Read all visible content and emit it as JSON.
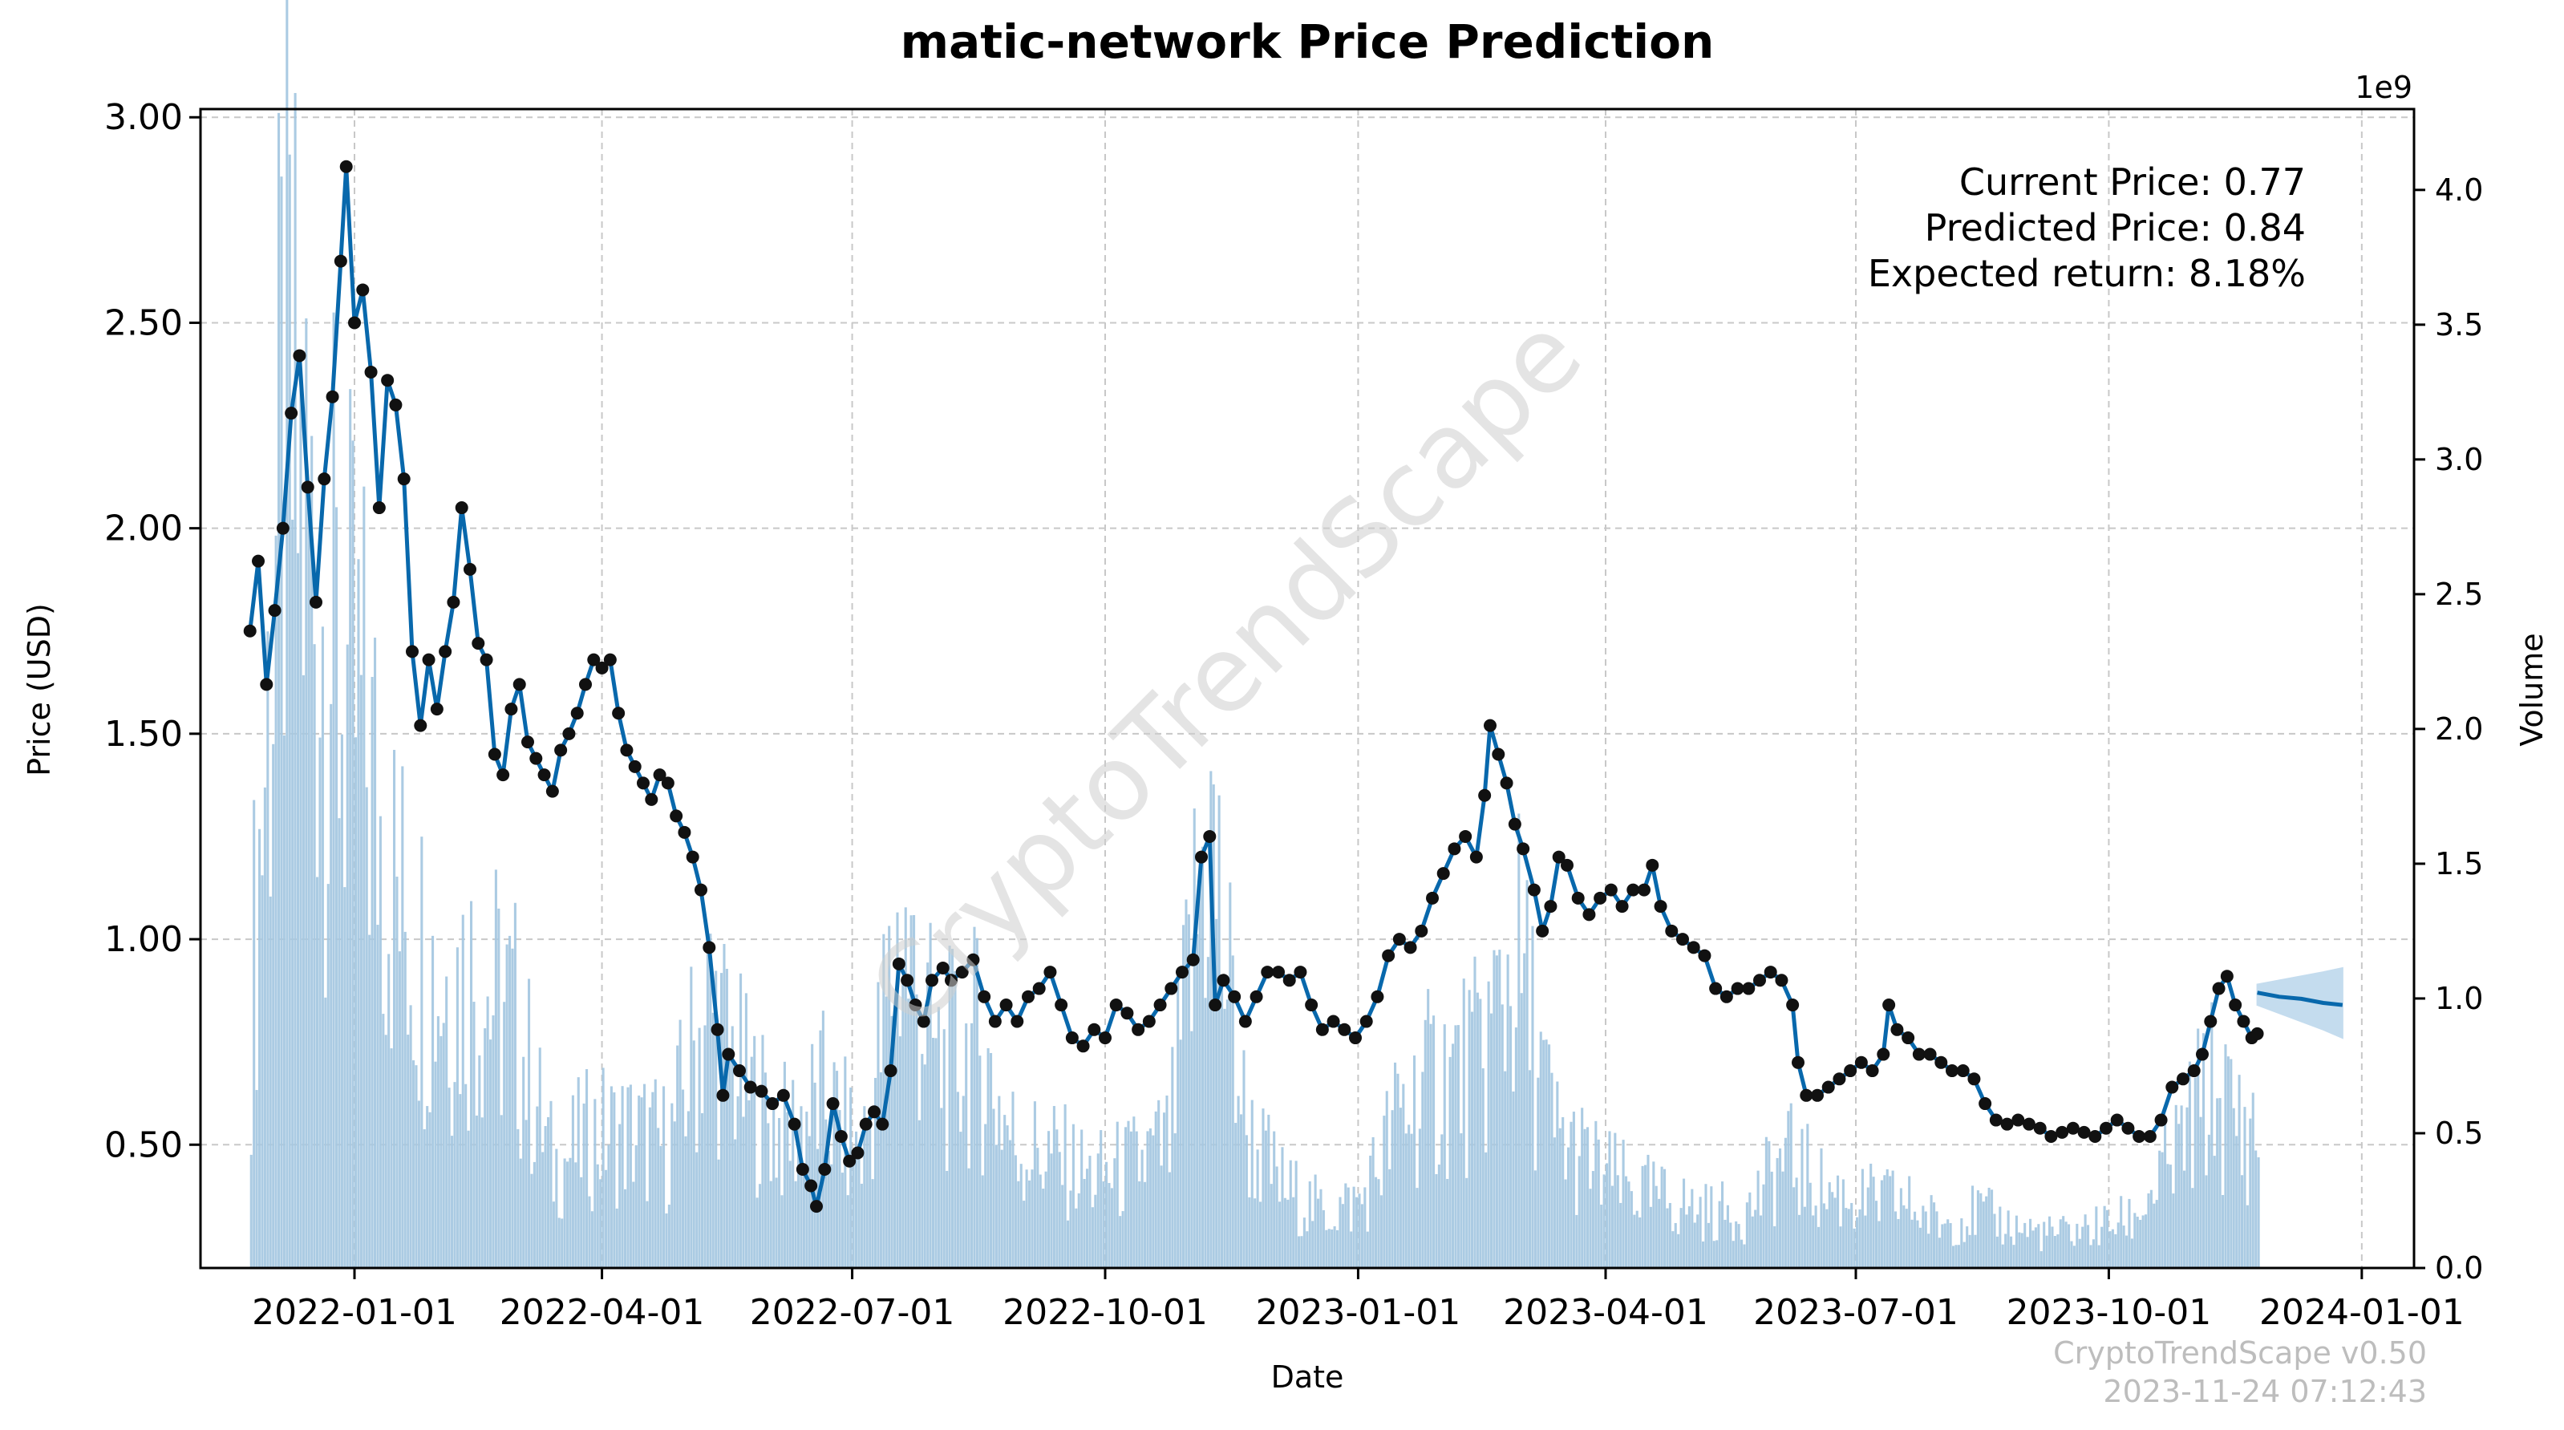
{
  "chart_data": {
    "type": "line",
    "title": "matic-network Price Prediction",
    "xlabel": "Date",
    "ylabel": "Price (USD)",
    "y2label": "Volume",
    "y2_offset_label": "1e9",
    "xlim": [
      "2021-11-06",
      "2024-01-20"
    ],
    "ylim": [
      0.2,
      3.02
    ],
    "y2lim": [
      0,
      4.3
    ],
    "x_ticks": [
      "2022-01-01",
      "2022-04-01",
      "2022-07-01",
      "2022-10-01",
      "2023-01-01",
      "2023-04-01",
      "2023-07-01",
      "2023-10-01",
      "2024-01-01"
    ],
    "y_ticks": [
      "0.50",
      "1.00",
      "1.50",
      "2.00",
      "2.50",
      "3.00"
    ],
    "y2_ticks": [
      "0.0",
      "0.5",
      "1.0",
      "1.5",
      "2.0",
      "2.5",
      "3.0",
      "3.5",
      "4.0"
    ],
    "grid": true,
    "watermark": "CryptoTrendScape",
    "annotations": [
      "Current Price: 0.77",
      "Predicted Price: 0.84",
      "Expected return: 8.18%"
    ],
    "footer": [
      "CryptoTrendScape v0.50",
      "2023-11-24 07:12:43"
    ],
    "colors": {
      "line": "#0868ac",
      "marker": "#111111",
      "volume": "#a6c8e2",
      "band": "#9ec5e4"
    },
    "price_series": {
      "name": "Price",
      "points": [
        [
          "2021-11-24",
          1.75
        ],
        [
          "2021-11-27",
          1.92
        ],
        [
          "2021-11-30",
          1.62
        ],
        [
          "2021-12-03",
          1.8
        ],
        [
          "2021-12-06",
          2.0
        ],
        [
          "2021-12-09",
          2.28
        ],
        [
          "2021-12-12",
          2.42
        ],
        [
          "2021-12-15",
          2.1
        ],
        [
          "2021-12-18",
          1.82
        ],
        [
          "2021-12-21",
          2.12
        ],
        [
          "2021-12-24",
          2.32
        ],
        [
          "2021-12-27",
          2.65
        ],
        [
          "2021-12-29",
          2.88
        ],
        [
          "2022-01-01",
          2.5
        ],
        [
          "2022-01-04",
          2.58
        ],
        [
          "2022-01-07",
          2.38
        ],
        [
          "2022-01-10",
          2.05
        ],
        [
          "2022-01-13",
          2.36
        ],
        [
          "2022-01-16",
          2.3
        ],
        [
          "2022-01-19",
          2.12
        ],
        [
          "2022-01-22",
          1.7
        ],
        [
          "2022-01-25",
          1.52
        ],
        [
          "2022-01-28",
          1.68
        ],
        [
          "2022-01-31",
          1.56
        ],
        [
          "2022-02-03",
          1.7
        ],
        [
          "2022-02-06",
          1.82
        ],
        [
          "2022-02-09",
          2.05
        ],
        [
          "2022-02-12",
          1.9
        ],
        [
          "2022-02-15",
          1.72
        ],
        [
          "2022-02-18",
          1.68
        ],
        [
          "2022-02-21",
          1.45
        ],
        [
          "2022-02-24",
          1.4
        ],
        [
          "2022-02-27",
          1.56
        ],
        [
          "2022-03-02",
          1.62
        ],
        [
          "2022-03-05",
          1.48
        ],
        [
          "2022-03-08",
          1.44
        ],
        [
          "2022-03-11",
          1.4
        ],
        [
          "2022-03-14",
          1.36
        ],
        [
          "2022-03-17",
          1.46
        ],
        [
          "2022-03-20",
          1.5
        ],
        [
          "2022-03-23",
          1.55
        ],
        [
          "2022-03-26",
          1.62
        ],
        [
          "2022-03-29",
          1.68
        ],
        [
          "2022-04-01",
          1.66
        ],
        [
          "2022-04-04",
          1.68
        ],
        [
          "2022-04-07",
          1.55
        ],
        [
          "2022-04-10",
          1.46
        ],
        [
          "2022-04-13",
          1.42
        ],
        [
          "2022-04-16",
          1.38
        ],
        [
          "2022-04-19",
          1.34
        ],
        [
          "2022-04-22",
          1.4
        ],
        [
          "2022-04-25",
          1.38
        ],
        [
          "2022-04-28",
          1.3
        ],
        [
          "2022-05-01",
          1.26
        ],
        [
          "2022-05-04",
          1.2
        ],
        [
          "2022-05-07",
          1.12
        ],
        [
          "2022-05-10",
          0.98
        ],
        [
          "2022-05-13",
          0.78
        ],
        [
          "2022-05-15",
          0.62
        ],
        [
          "2022-05-17",
          0.72
        ],
        [
          "2022-05-21",
          0.68
        ],
        [
          "2022-05-25",
          0.64
        ],
        [
          "2022-05-29",
          0.63
        ],
        [
          "2022-06-02",
          0.6
        ],
        [
          "2022-06-06",
          0.62
        ],
        [
          "2022-06-10",
          0.55
        ],
        [
          "2022-06-13",
          0.44
        ],
        [
          "2022-06-16",
          0.4
        ],
        [
          "2022-06-18",
          0.35
        ],
        [
          "2022-06-21",
          0.44
        ],
        [
          "2022-06-24",
          0.6
        ],
        [
          "2022-06-27",
          0.52
        ],
        [
          "2022-06-30",
          0.46
        ],
        [
          "2022-07-03",
          0.48
        ],
        [
          "2022-07-06",
          0.55
        ],
        [
          "2022-07-09",
          0.58
        ],
        [
          "2022-07-12",
          0.55
        ],
        [
          "2022-07-15",
          0.68
        ],
        [
          "2022-07-18",
          0.94
        ],
        [
          "2022-07-21",
          0.9
        ],
        [
          "2022-07-24",
          0.84
        ],
        [
          "2022-07-27",
          0.8
        ],
        [
          "2022-07-30",
          0.9
        ],
        [
          "2022-08-03",
          0.93
        ],
        [
          "2022-08-06",
          0.9
        ],
        [
          "2022-08-10",
          0.92
        ],
        [
          "2022-08-14",
          0.95
        ],
        [
          "2022-08-18",
          0.86
        ],
        [
          "2022-08-22",
          0.8
        ],
        [
          "2022-08-26",
          0.84
        ],
        [
          "2022-08-30",
          0.8
        ],
        [
          "2022-09-03",
          0.86
        ],
        [
          "2022-09-07",
          0.88
        ],
        [
          "2022-09-11",
          0.92
        ],
        [
          "2022-09-15",
          0.84
        ],
        [
          "2022-09-19",
          0.76
        ],
        [
          "2022-09-23",
          0.74
        ],
        [
          "2022-09-27",
          0.78
        ],
        [
          "2022-10-01",
          0.76
        ],
        [
          "2022-10-05",
          0.84
        ],
        [
          "2022-10-09",
          0.82
        ],
        [
          "2022-10-13",
          0.78
        ],
        [
          "2022-10-17",
          0.8
        ],
        [
          "2022-10-21",
          0.84
        ],
        [
          "2022-10-25",
          0.88
        ],
        [
          "2022-10-29",
          0.92
        ],
        [
          "2022-11-02",
          0.95
        ],
        [
          "2022-11-05",
          1.2
        ],
        [
          "2022-11-08",
          1.25
        ],
        [
          "2022-11-10",
          0.84
        ],
        [
          "2022-11-13",
          0.9
        ],
        [
          "2022-11-17",
          0.86
        ],
        [
          "2022-11-21",
          0.8
        ],
        [
          "2022-11-25",
          0.86
        ],
        [
          "2022-11-29",
          0.92
        ],
        [
          "2022-12-03",
          0.92
        ],
        [
          "2022-12-07",
          0.9
        ],
        [
          "2022-12-11",
          0.92
        ],
        [
          "2022-12-15",
          0.84
        ],
        [
          "2022-12-19",
          0.78
        ],
        [
          "2022-12-23",
          0.8
        ],
        [
          "2022-12-27",
          0.78
        ],
        [
          "2022-12-31",
          0.76
        ],
        [
          "2023-01-04",
          0.8
        ],
        [
          "2023-01-08",
          0.86
        ],
        [
          "2023-01-12",
          0.96
        ],
        [
          "2023-01-16",
          1.0
        ],
        [
          "2023-01-20",
          0.98
        ],
        [
          "2023-01-24",
          1.02
        ],
        [
          "2023-01-28",
          1.1
        ],
        [
          "2023-02-01",
          1.16
        ],
        [
          "2023-02-05",
          1.22
        ],
        [
          "2023-02-09",
          1.25
        ],
        [
          "2023-02-13",
          1.2
        ],
        [
          "2023-02-16",
          1.35
        ],
        [
          "2023-02-18",
          1.52
        ],
        [
          "2023-02-21",
          1.45
        ],
        [
          "2023-02-24",
          1.38
        ],
        [
          "2023-02-27",
          1.28
        ],
        [
          "2023-03-02",
          1.22
        ],
        [
          "2023-03-06",
          1.12
        ],
        [
          "2023-03-09",
          1.02
        ],
        [
          "2023-03-12",
          1.08
        ],
        [
          "2023-03-15",
          1.2
        ],
        [
          "2023-03-18",
          1.18
        ],
        [
          "2023-03-22",
          1.1
        ],
        [
          "2023-03-26",
          1.06
        ],
        [
          "2023-03-30",
          1.1
        ],
        [
          "2023-04-03",
          1.12
        ],
        [
          "2023-04-07",
          1.08
        ],
        [
          "2023-04-11",
          1.12
        ],
        [
          "2023-04-15",
          1.12
        ],
        [
          "2023-04-18",
          1.18
        ],
        [
          "2023-04-21",
          1.08
        ],
        [
          "2023-04-25",
          1.02
        ],
        [
          "2023-04-29",
          1.0
        ],
        [
          "2023-05-03",
          0.98
        ],
        [
          "2023-05-07",
          0.96
        ],
        [
          "2023-05-11",
          0.88
        ],
        [
          "2023-05-15",
          0.86
        ],
        [
          "2023-05-19",
          0.88
        ],
        [
          "2023-05-23",
          0.88
        ],
        [
          "2023-05-27",
          0.9
        ],
        [
          "2023-05-31",
          0.92
        ],
        [
          "2023-06-04",
          0.9
        ],
        [
          "2023-06-08",
          0.84
        ],
        [
          "2023-06-10",
          0.7
        ],
        [
          "2023-06-13",
          0.62
        ],
        [
          "2023-06-17",
          0.62
        ],
        [
          "2023-06-21",
          0.64
        ],
        [
          "2023-06-25",
          0.66
        ],
        [
          "2023-06-29",
          0.68
        ],
        [
          "2023-07-03",
          0.7
        ],
        [
          "2023-07-07",
          0.68
        ],
        [
          "2023-07-11",
          0.72
        ],
        [
          "2023-07-13",
          0.84
        ],
        [
          "2023-07-16",
          0.78
        ],
        [
          "2023-07-20",
          0.76
        ],
        [
          "2023-07-24",
          0.72
        ],
        [
          "2023-07-28",
          0.72
        ],
        [
          "2023-08-01",
          0.7
        ],
        [
          "2023-08-05",
          0.68
        ],
        [
          "2023-08-09",
          0.68
        ],
        [
          "2023-08-13",
          0.66
        ],
        [
          "2023-08-17",
          0.6
        ],
        [
          "2023-08-21",
          0.56
        ],
        [
          "2023-08-25",
          0.55
        ],
        [
          "2023-08-29",
          0.56
        ],
        [
          "2023-09-02",
          0.55
        ],
        [
          "2023-09-06",
          0.54
        ],
        [
          "2023-09-10",
          0.52
        ],
        [
          "2023-09-14",
          0.53
        ],
        [
          "2023-09-18",
          0.54
        ],
        [
          "2023-09-22",
          0.53
        ],
        [
          "2023-09-26",
          0.52
        ],
        [
          "2023-09-30",
          0.54
        ],
        [
          "2023-10-04",
          0.56
        ],
        [
          "2023-10-08",
          0.54
        ],
        [
          "2023-10-12",
          0.52
        ],
        [
          "2023-10-16",
          0.52
        ],
        [
          "2023-10-20",
          0.56
        ],
        [
          "2023-10-24",
          0.64
        ],
        [
          "2023-10-28",
          0.66
        ],
        [
          "2023-11-01",
          0.68
        ],
        [
          "2023-11-04",
          0.72
        ],
        [
          "2023-11-07",
          0.8
        ],
        [
          "2023-11-10",
          0.88
        ],
        [
          "2023-11-13",
          0.91
        ],
        [
          "2023-11-16",
          0.84
        ],
        [
          "2023-11-19",
          0.8
        ],
        [
          "2023-11-22",
          0.76
        ],
        [
          "2023-11-24",
          0.77
        ]
      ]
    },
    "forecast_series": {
      "name": "Forecast",
      "points": [
        [
          "2023-11-24",
          0.87
        ],
        [
          "2023-12-02",
          0.86
        ],
        [
          "2023-12-10",
          0.855
        ],
        [
          "2023-12-18",
          0.845
        ],
        [
          "2023-12-25",
          0.84
        ]
      ],
      "upper": [
        0.89,
        0.9,
        0.91,
        0.92,
        0.93
      ],
      "lower": [
        0.84,
        0.82,
        0.8,
        0.78,
        0.76
      ]
    },
    "volume_series": {
      "name": "Volume",
      "unit": "1e9",
      "note": "approximate biweekly envelope of daily volume bars",
      "points": [
        [
          "2021-11-24",
          1.2
        ],
        [
          "2021-12-06",
          3.8
        ],
        [
          "2021-12-20",
          2.9
        ],
        [
          "2022-01-03",
          2.4
        ],
        [
          "2022-01-17",
          1.6
        ],
        [
          "2022-01-31",
          1.3
        ],
        [
          "2022-02-14",
          1.3
        ],
        [
          "2022-02-28",
          1.1
        ],
        [
          "2022-03-14",
          0.45
        ],
        [
          "2022-03-28",
          0.6
        ],
        [
          "2022-04-11",
          0.6
        ],
        [
          "2022-04-25",
          0.55
        ],
        [
          "2022-05-09",
          1.2
        ],
        [
          "2022-05-23",
          0.8
        ],
        [
          "2022-06-06",
          0.6
        ],
        [
          "2022-06-20",
          0.75
        ],
        [
          "2022-07-04",
          0.5
        ],
        [
          "2022-07-18",
          1.5
        ],
        [
          "2022-08-01",
          0.9
        ],
        [
          "2022-08-15",
          1.0
        ],
        [
          "2022-08-29",
          0.55
        ],
        [
          "2022-09-12",
          0.5
        ],
        [
          "2022-09-26",
          0.4
        ],
        [
          "2022-10-10",
          0.45
        ],
        [
          "2022-10-24",
          0.55
        ],
        [
          "2022-11-07",
          2.0
        ],
        [
          "2022-11-21",
          0.6
        ],
        [
          "2022-12-05",
          0.35
        ],
        [
          "2022-12-19",
          0.25
        ],
        [
          "2023-01-02",
          0.3
        ],
        [
          "2023-01-16",
          0.7
        ],
        [
          "2023-01-30",
          0.85
        ],
        [
          "2023-02-13",
          0.9
        ],
        [
          "2023-02-27",
          1.4
        ],
        [
          "2023-03-13",
          0.6
        ],
        [
          "2023-03-27",
          0.45
        ],
        [
          "2023-04-10",
          0.35
        ],
        [
          "2023-04-24",
          0.3
        ],
        [
          "2023-05-08",
          0.25
        ],
        [
          "2023-05-22",
          0.25
        ],
        [
          "2023-06-05",
          0.5
        ],
        [
          "2023-06-19",
          0.35
        ],
        [
          "2023-07-03",
          0.3
        ],
        [
          "2023-07-17",
          0.3
        ],
        [
          "2023-07-31",
          0.2
        ],
        [
          "2023-08-14",
          0.25
        ],
        [
          "2023-08-28",
          0.18
        ],
        [
          "2023-09-11",
          0.15
        ],
        [
          "2023-09-25",
          0.18
        ],
        [
          "2023-10-09",
          0.22
        ],
        [
          "2023-10-23",
          0.45
        ],
        [
          "2023-11-06",
          0.8
        ],
        [
          "2023-11-20",
          0.6
        ]
      ]
    }
  }
}
